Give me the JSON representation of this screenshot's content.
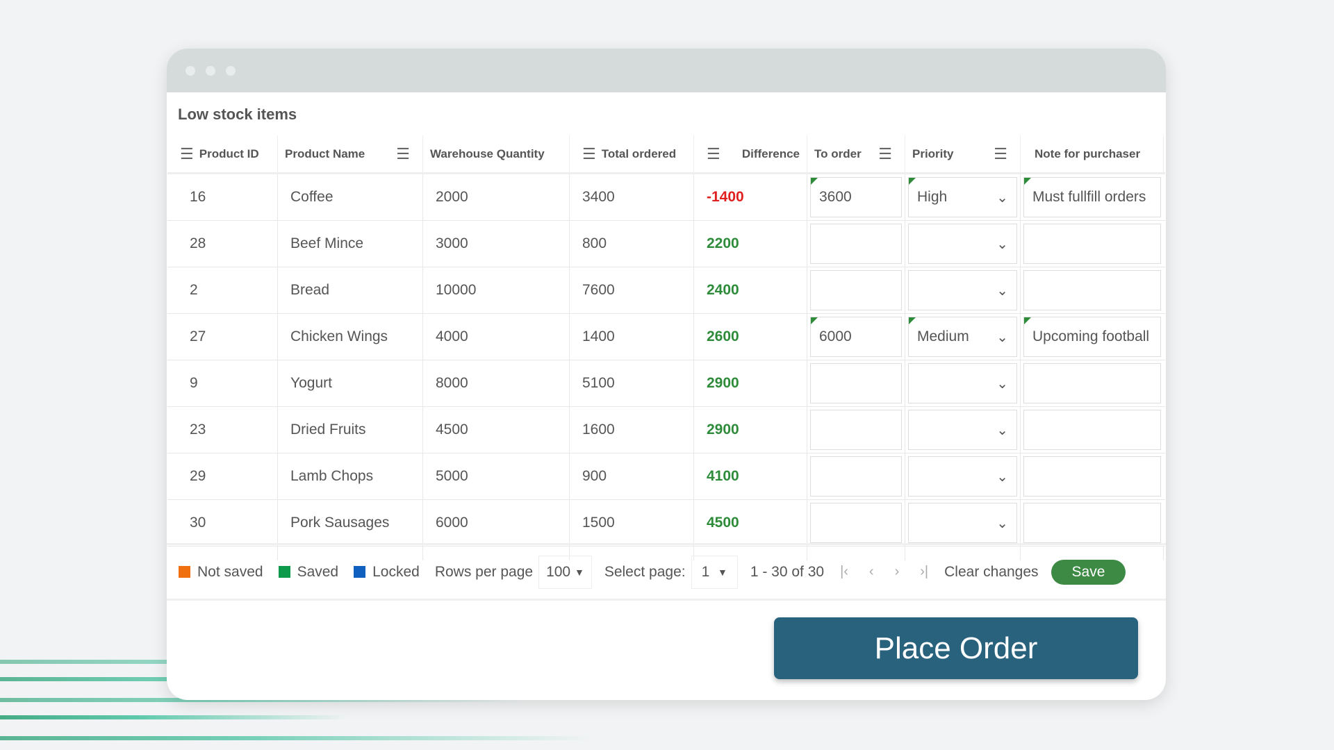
{
  "title": "Low stock items",
  "columns": [
    "Product ID",
    "Product Name",
    "Warehouse Quantity",
    "Total ordered",
    "Difference",
    "To order",
    "Priority",
    "Note for purchaser"
  ],
  "rows": [
    {
      "id": "16",
      "name": "Coffee",
      "wq": "2000",
      "to": "3400",
      "diff": "-1400",
      "order": "3600",
      "priority": "High",
      "note": "Must fullfill orders"
    },
    {
      "id": "28",
      "name": "Beef Mince",
      "wq": "3000",
      "to": "800",
      "diff": "2200",
      "order": "",
      "priority": "",
      "note": ""
    },
    {
      "id": "2",
      "name": "Bread",
      "wq": "10000",
      "to": "7600",
      "diff": "2400",
      "order": "",
      "priority": "",
      "note": ""
    },
    {
      "id": "27",
      "name": "Chicken Wings",
      "wq": "4000",
      "to": "1400",
      "diff": "2600",
      "order": "6000",
      "priority": "Medium",
      "note": "Upcoming football"
    },
    {
      "id": "9",
      "name": "Yogurt",
      "wq": "8000",
      "to": "5100",
      "diff": "2900",
      "order": "",
      "priority": "",
      "note": ""
    },
    {
      "id": "23",
      "name": "Dried Fruits",
      "wq": "4500",
      "to": "1600",
      "diff": "2900",
      "order": "",
      "priority": "",
      "note": ""
    },
    {
      "id": "29",
      "name": "Lamb Chops",
      "wq": "5000",
      "to": "900",
      "diff": "4100",
      "order": "",
      "priority": "",
      "note": ""
    },
    {
      "id": "30",
      "name": "Pork Sausages",
      "wq": "6000",
      "to": "1500",
      "diff": "4500",
      "order": "",
      "priority": "",
      "note": ""
    }
  ],
  "footer": {
    "legend": [
      {
        "label": "Not saved",
        "color": "#f07010"
      },
      {
        "label": "Saved",
        "color": "#0d9a4a"
      },
      {
        "label": "Locked",
        "color": "#1060c0"
      }
    ],
    "rows_per_page_label": "Rows per page",
    "rows_per_page": "100",
    "select_page_label": "Select page:",
    "page": "1",
    "range": "1 - 30 of 30",
    "clear": "Clear changes",
    "save": "Save"
  },
  "place_order": "Place Order",
  "colors": {
    "negative": "#e02020",
    "positive": "#2e8b3a",
    "accent": "#29627d"
  }
}
